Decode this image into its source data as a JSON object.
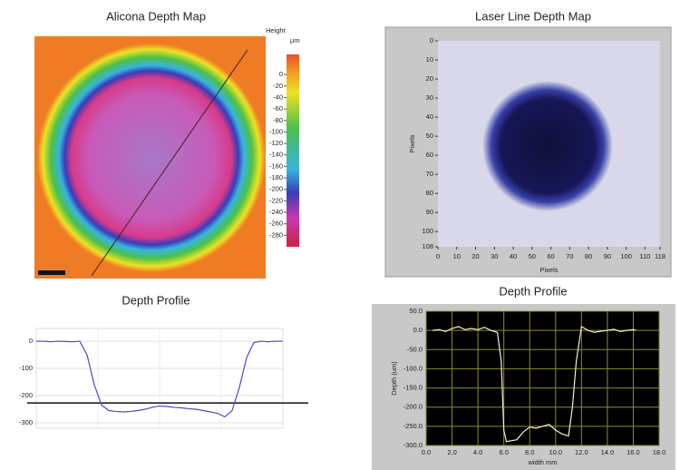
{
  "chart_data": [
    {
      "type": "heatmap",
      "title": "Alicona Depth Map",
      "colorbar_label": "Height",
      "colorbar_unit": "µm",
      "clim": [
        35,
        -300
      ],
      "cticks": [
        0,
        -20,
        -40,
        -60,
        -80,
        -100,
        -120,
        -140,
        -160,
        -180,
        -200,
        -220,
        -240,
        -260,
        -280
      ]
    },
    {
      "type": "heatmap",
      "title": "Laser Line Depth Map",
      "xlabel": "Pixels",
      "ylabel": "Pixels",
      "xlim": [
        0,
        118
      ],
      "xticks": [
        0,
        10,
        20,
        30,
        40,
        50,
        60,
        70,
        80,
        90,
        100,
        110,
        118
      ],
      "ylim": [
        0,
        108
      ],
      "yticks": [
        0,
        10,
        20,
        30,
        40,
        50,
        60,
        70,
        80,
        90,
        100,
        108
      ],
      "y_inverted": true
    },
    {
      "type": "line",
      "title": "Depth Profile",
      "ylim": [
        -320,
        47
      ],
      "yticks": [
        0,
        -100,
        -200,
        -300
      ],
      "grid": true,
      "reference_line": -227,
      "series": [
        {
          "color": "#4a4ac8",
          "values": [
            0,
            0,
            -2,
            0,
            -1,
            -2,
            0,
            -50,
            -160,
            -235,
            -255,
            -258,
            -260,
            -258,
            -255,
            -250,
            -243,
            -238,
            -240,
            -243,
            -245,
            -248,
            -250,
            -255,
            -260,
            -265,
            -278,
            -255,
            -170,
            -60,
            -5,
            0,
            -2,
            0,
            0
          ]
        }
      ]
    },
    {
      "type": "line",
      "title": "Depth Profile",
      "xlabel": "width mm",
      "ylabel": "Depth (um)",
      "grid": true,
      "xlim": [
        0,
        18
      ],
      "xticks": [
        {
          "value": 0,
          "label": "0.0"
        },
        {
          "value": 2,
          "label": "2.0"
        },
        {
          "value": 4,
          "label": "4.0"
        },
        {
          "value": 6,
          "label": "6.0"
        },
        {
          "value": 8,
          "label": "8.0"
        },
        {
          "value": 10,
          "label": "10.0"
        },
        {
          "value": 12,
          "label": "12.0"
        },
        {
          "value": 14,
          "label": "14.0"
        },
        {
          "value": 16,
          "label": "16.0"
        },
        {
          "value": 18,
          "label": "18.0"
        }
      ],
      "ylim": [
        -300,
        50
      ],
      "yticks": [
        {
          "value": 50,
          "label": "50.0"
        },
        {
          "value": 0,
          "label": "0.0"
        },
        {
          "value": -50,
          "label": "-50.0"
        },
        {
          "value": -100,
          "label": "-100.0"
        },
        {
          "value": -150,
          "label": "-150.0"
        },
        {
          "value": -200,
          "label": "-200.0"
        },
        {
          "value": -250,
          "label": "-250.0"
        },
        {
          "value": -300,
          "label": "-300.0"
        }
      ],
      "series": [
        {
          "color": "#f4f0d0",
          "x": [
            0.5,
            1,
            1.5,
            2,
            2.5,
            3,
            3.5,
            4,
            4.5,
            5,
            5.5,
            5.8,
            6,
            6.2,
            6.5,
            7,
            7.5,
            8,
            8.5,
            9,
            9.5,
            10,
            10.5,
            11,
            11.3,
            11.6,
            12,
            12.5,
            13,
            13.5,
            14,
            14.5,
            15,
            15.5,
            16,
            16.2
          ],
          "values": [
            0,
            2,
            -3,
            5,
            10,
            2,
            5,
            2,
            8,
            0,
            -5,
            -80,
            -260,
            -290,
            -288,
            -285,
            -265,
            -252,
            -255,
            -250,
            -245,
            -260,
            -270,
            -275,
            -200,
            -80,
            10,
            0,
            -5,
            -2,
            0,
            3,
            -3,
            0,
            2,
            0
          ]
        }
      ]
    }
  ]
}
